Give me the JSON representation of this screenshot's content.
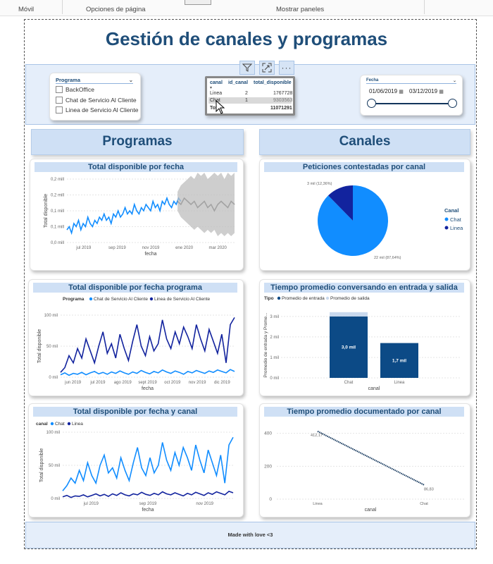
{
  "ribbon": {
    "movil": "Móvil",
    "opciones": "Opciones de página",
    "mostrar": "Mostrar paneles"
  },
  "title": "Gestión de canales y programas",
  "slicer_programa": {
    "title": "Programa",
    "items": [
      "BackOffice",
      "Chat de Servicio Al Cliente",
      "Linea de Servicio Al Cliente"
    ]
  },
  "table": {
    "headers": [
      "canal",
      "id_canal",
      "total_disponible"
    ],
    "rows": [
      [
        "Linea",
        "2",
        "1767728"
      ],
      [
        "Chat",
        "1",
        "9303563"
      ]
    ],
    "total_label": "Total",
    "total_value": "11071291"
  },
  "slicer_fecha": {
    "title": "Fecha",
    "start": "01/06/2019",
    "end": "03/12/2019"
  },
  "sections": {
    "programas": "Programas",
    "canales": "Canales"
  },
  "footer": "Made with love <3",
  "colors": {
    "light_blue": "#118dff",
    "dark_navy": "#12239e",
    "dark_bar": "#0c4a86",
    "band": "#cfe0f5"
  },
  "icons": [
    "filter-icon",
    "focus-mode-icon",
    "more-options-icon",
    "calendar-icon",
    "cursor-icon"
  ],
  "chart_data": [
    {
      "id": "c1",
      "type": "line",
      "title": "Total disponible por fecha",
      "xlabel": "fecha",
      "ylabel": "Total disponible",
      "ylim": [
        0,
        0.2
      ],
      "yticks": [
        "0,0 mill",
        "0,1 mill",
        "0,1 mill",
        "0,2 mill",
        "0,2 mill"
      ],
      "xticks": [
        "jul 2019",
        "sep 2019",
        "nov 2019",
        "ene 2020",
        "mar 2020"
      ],
      "series": [
        {
          "values": [
            0.04,
            0.05,
            0.03,
            0.06,
            0.05,
            0.07,
            0.04,
            0.06,
            0.05,
            0.08,
            0.06,
            0.05,
            0.07,
            0.06,
            0.08,
            0.07,
            0.09,
            0.07,
            0.08,
            0.06,
            0.09,
            0.08,
            0.1,
            0.08,
            0.09,
            0.11,
            0.09,
            0.1,
            0.09,
            0.12,
            0.1,
            0.09,
            0.11,
            0.1,
            0.12,
            0.11,
            0.1,
            0.13,
            0.11,
            0.12,
            0.1,
            0.13,
            0.12,
            0.14,
            0.12,
            0.11,
            0.13,
            0.12,
            0.14,
            0.13
          ]
        },
        {
          "values": [
            0.13,
            0.12,
            0.14,
            0.13,
            0.12,
            0.13,
            0.11,
            0.12,
            0.13,
            0.11,
            0.12,
            0.1,
            0.12,
            0.13,
            0.12,
            0.11,
            0.13,
            0.12
          ]
        },
        {
          "band_upper": [
            0.16,
            0.18,
            0.19,
            0.2,
            0.21,
            0.2,
            0.22,
            0.21,
            0.22,
            0.2,
            0.21,
            0.22,
            0.21,
            0.22,
            0.2,
            0.22,
            0.21,
            0.22
          ],
          "band_lower": [
            0.1,
            0.08,
            0.07,
            0.06,
            0.05,
            0.04,
            0.05,
            0.04,
            0.03,
            0.04,
            0.03,
            0.04,
            0.02,
            0.03,
            0.02,
            0.03,
            0.02,
            0.03
          ]
        }
      ]
    },
    {
      "id": "c2",
      "type": "pie",
      "title": "Peticiones contestadas por canal",
      "legend_title": "Canal",
      "categories": [
        "Chat",
        "Linea"
      ],
      "values": [
        87.64,
        12.36
      ],
      "labels": [
        "22 mil (87,64%)",
        "3 mil (12,36%)"
      ]
    },
    {
      "id": "c3",
      "type": "line",
      "title": "Total disponible por fecha programa",
      "xlabel": "fecha",
      "ylabel": "Total disponible",
      "legend_title": "Programa",
      "ylim": [
        0,
        130
      ],
      "yticks": [
        "0 mil",
        "50 mil",
        "100 mil"
      ],
      "xticks": [
        "jun 2019",
        "jul 2019",
        "ago 2019",
        "sept 2019",
        "oct 2019",
        "nov 2019",
        "dic 2019"
      ],
      "series": [
        {
          "name": "Chat de Servicio Al Cliente",
          "values": [
            5,
            9,
            4,
            8,
            6,
            10,
            5,
            9,
            12,
            7,
            10,
            6,
            11,
            8,
            13,
            9,
            6,
            11,
            8,
            14,
            10,
            7,
            12,
            9,
            15,
            11,
            8,
            13,
            10,
            6,
            12,
            9,
            14,
            11,
            8,
            13,
            10,
            15,
            12,
            9,
            16,
            12
          ]
        },
        {
          "name": "Linea de Servicio Al Cliente",
          "values": [
            10,
            20,
            45,
            30,
            60,
            40,
            80,
            55,
            30,
            65,
            95,
            50,
            70,
            40,
            90,
            60,
            35,
            75,
            110,
            65,
            45,
            85,
            55,
            70,
            120,
            80,
            60,
            95,
            70,
            105,
            85,
            60,
            110,
            80,
            55,
            100,
            75,
            50,
            90,
            30,
            110,
            125
          ]
        }
      ]
    },
    {
      "id": "c4",
      "type": "bar",
      "title": "Tiempo promedio conversando en entrada y salida",
      "legend_title": "Tipo",
      "legend": [
        "Promedio de entrada",
        "Promedio de salida"
      ],
      "xlabel": "canal",
      "ylabel": "Promedio de entrada y Prome...",
      "ylim": [
        0,
        3.2
      ],
      "yticks": [
        "0 mil",
        "1 mil",
        "2 mil",
        "3 mil"
      ],
      "categories": [
        "Chat",
        "Linea"
      ],
      "values": [
        3.0,
        1.7
      ],
      "value_labels": [
        "3,0 mil",
        "1,7 mil"
      ]
    },
    {
      "id": "c5",
      "type": "line",
      "title": "Total disponible por fecha y canal",
      "xlabel": "fecha",
      "ylabel": "Total disponible",
      "legend_title": "canal",
      "ylim": [
        0,
        130
      ],
      "yticks": [
        "0 mil",
        "50 mil",
        "100 mil"
      ],
      "xticks": [
        "jul 2019",
        "sep 2019",
        "nov 2019"
      ],
      "series": [
        {
          "name": "Chat",
          "values": [
            15,
            25,
            40,
            30,
            55,
            35,
            70,
            45,
            30,
            65,
            85,
            50,
            60,
            40,
            80,
            55,
            35,
            70,
            100,
            60,
            45,
            80,
            50,
            65,
            110,
            75,
            55,
            90,
            65,
            100,
            80,
            55,
            105,
            75,
            50,
            95,
            70,
            45,
            85,
            30,
            105,
            120
          ]
        },
        {
          "name": "Linea",
          "values": [
            3,
            6,
            2,
            5,
            4,
            7,
            3,
            6,
            9,
            5,
            8,
            4,
            9,
            6,
            11,
            7,
            5,
            9,
            7,
            12,
            8,
            6,
            10,
            7,
            13,
            9,
            7,
            11,
            8,
            5,
            10,
            7,
            12,
            9,
            6,
            11,
            8,
            13,
            10,
            7,
            14,
            11
          ]
        }
      ]
    },
    {
      "id": "c6",
      "type": "line",
      "title": "Tiempo promedio documentado por canal",
      "xlabel": "canal",
      "ylim": [
        0,
        450
      ],
      "yticks": [
        "0",
        "200",
        "400"
      ],
      "categories": [
        "Linea",
        "Chat"
      ],
      "values": [
        412.17,
        86.83
      ],
      "value_labels": [
        "412,17",
        "86,83"
      ]
    }
  ]
}
